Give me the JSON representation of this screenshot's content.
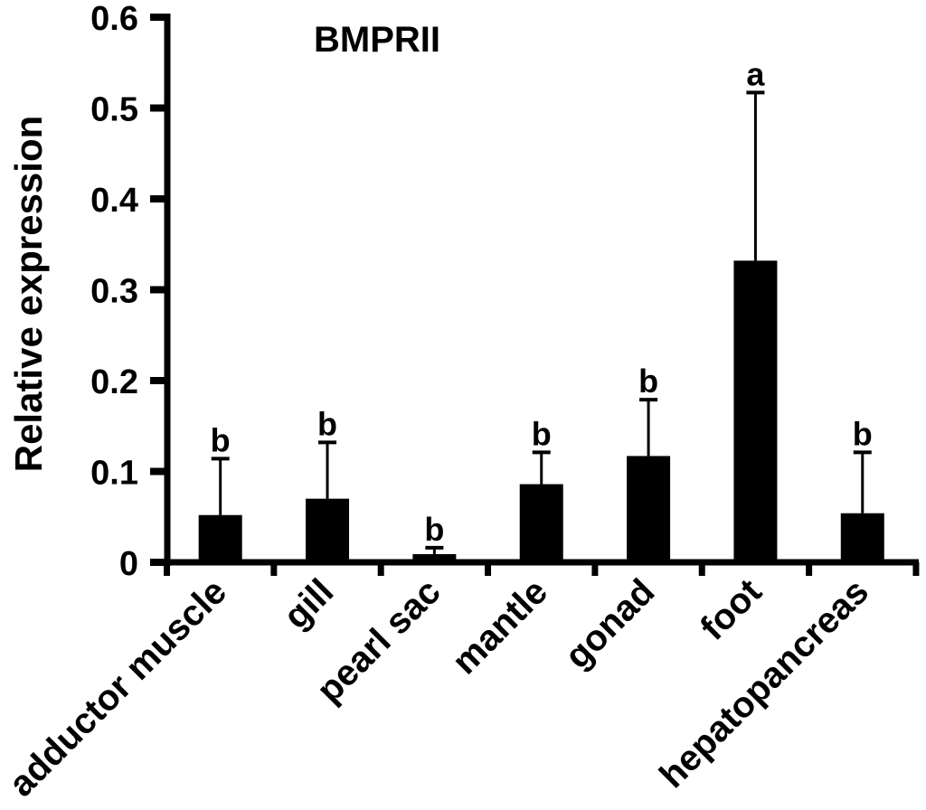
{
  "chart_data": {
    "type": "bar",
    "title": "BMPRII",
    "ylabel": "Relative expression",
    "xlabel": "",
    "ylim": [
      0,
      0.6
    ],
    "yticks": [
      "0",
      "0.1",
      "0.2",
      "0.3",
      "0.4",
      "0.5",
      "0.6"
    ],
    "categories": [
      "adductor muscle",
      "gill",
      "pearl sac",
      "mantle",
      "gonad",
      "foot",
      "hepatopancreas"
    ],
    "series": [
      {
        "name": "Relative expression",
        "values": [
          0.052,
          0.07,
          0.009,
          0.086,
          0.117,
          0.332,
          0.054
        ],
        "errors_plus": [
          0.062,
          0.062,
          0.007,
          0.035,
          0.062,
          0.185,
          0.067
        ],
        "sig_letters": [
          "b",
          "b",
          "b",
          "b",
          "b",
          "a",
          "b"
        ]
      }
    ],
    "bar_color": "#000000",
    "axis_color": "#000000",
    "text_color": "#000000",
    "background_color": "#ffffff",
    "grid": false,
    "legend": null,
    "x_tick_rotation_deg": 45,
    "error_bars": "plus-only-with-caps"
  }
}
